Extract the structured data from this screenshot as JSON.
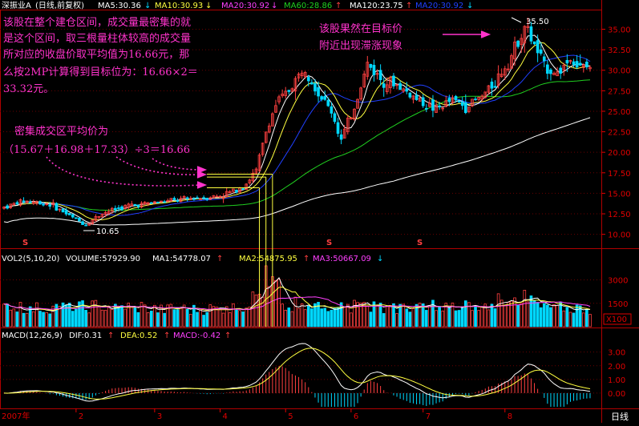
{
  "colors": {
    "background": "#000000",
    "frame": "#b00000",
    "up": "#ff4040",
    "down": "#00d8ff",
    "white": "#ffffff",
    "yellow": "#ffff40",
    "magenta": "#ff40ff",
    "green": "#20d020",
    "blue": "#2040ff",
    "annotation": "#ff33cc",
    "axis_text": "#e00000"
  },
  "header": {
    "stock": "深振业A",
    "period": "(日线,前复权)",
    "ma5": "MA5:30.36",
    "ma10": "MA10:30.93",
    "ma20": "MA20:30.92",
    "ma60": "MA60:28.86",
    "ma120": "MA120:23.75",
    "ma20b": "MA20:30.92",
    "arrow_down": "↓",
    "arrow_up": "↑"
  },
  "annotations": {
    "main_text": [
      "该股在整个建仓区间，成交量最密集的就",
      "是这个区间，取三根量柱体较高的成交量",
      "所对应的收盘价取平均值为16.66元，那",
      "么按2MP计算得到目标位为：16.66×2＝",
      "33.32元。"
    ],
    "right_text": [
      "该股果然在目标价",
      "附近出现滞涨现象"
    ],
    "avg_text": [
      "密集成交区平均价为",
      "（15.67＋16.98＋17.33）÷3＝16.66"
    ],
    "high_label": "35.50",
    "low_label": "10.65",
    "s_marker": "S"
  },
  "volume_header": {
    "title": "VOL2(5,10,20)",
    "volume": "VOLUME:57929.90",
    "ma1": "MA1:54778.07",
    "ma2": "MA2:54875.95",
    "ma3": "MA3:50667.09",
    "unit": "X100"
  },
  "macd_header": {
    "title": "MACD(12,26,9)",
    "dif": "DIF:0.31",
    "dea": "DEA:0.52",
    "macd": "MACD:-0.42"
  },
  "x_axis": {
    "labels": [
      "2007年",
      "2",
      "3",
      "4",
      "5",
      "6",
      "7",
      "8"
    ],
    "period_button": "日线"
  },
  "chart_data": [
    {
      "type": "candlestick",
      "title": "深振业A (日线,前复权)",
      "ylim": [
        8.5,
        37
      ],
      "y_ticks": [
        "35.00",
        "32.50",
        "30.00",
        "27.50",
        "25.00",
        "22.50",
        "20.00",
        "17.50",
        "15.00",
        "12.50",
        "10.00"
      ],
      "series": [
        {
          "name": "MA5",
          "value": 30.36
        },
        {
          "name": "MA10",
          "value": 30.93
        },
        {
          "name": "MA20",
          "value": 30.92
        },
        {
          "name": "MA60",
          "value": 28.86
        },
        {
          "name": "MA120",
          "value": 23.75
        }
      ],
      "key_points": {
        "high": 35.5,
        "low": 10.65,
        "dense_closes": [
          15.67,
          16.98,
          17.33
        ],
        "dense_average": 16.66,
        "target_2mp": 33.32
      },
      "anchors": [
        {
          "t": 0,
          "p": 13.3
        },
        {
          "t": 6,
          "p": 14.1
        },
        {
          "t": 14,
          "p": 13.7
        },
        {
          "t": 22,
          "p": 11.8
        },
        {
          "t": 25,
          "p": 11.2
        },
        {
          "t": 30,
          "p": 12.6
        },
        {
          "t": 38,
          "p": 13.5
        },
        {
          "t": 46,
          "p": 13.9
        },
        {
          "t": 56,
          "p": 14.3
        },
        {
          "t": 66,
          "p": 14.7
        },
        {
          "t": 70,
          "p": 15.3
        },
        {
          "t": 74,
          "p": 16.2
        },
        {
          "t": 77,
          "p": 17.8
        },
        {
          "t": 80,
          "p": 22.5
        },
        {
          "t": 83,
          "p": 25.8
        },
        {
          "t": 87,
          "p": 27.6
        },
        {
          "t": 92,
          "p": 30.5
        },
        {
          "t": 96,
          "p": 27.2
        },
        {
          "t": 100,
          "p": 25.0
        },
        {
          "t": 103,
          "p": 21.5
        },
        {
          "t": 107,
          "p": 25.5
        },
        {
          "t": 111,
          "p": 30.8
        },
        {
          "t": 115,
          "p": 29.0
        },
        {
          "t": 120,
          "p": 28.2
        },
        {
          "t": 126,
          "p": 26.5
        },
        {
          "t": 132,
          "p": 25.2
        },
        {
          "t": 137,
          "p": 26.4
        },
        {
          "t": 141,
          "p": 25.6
        },
        {
          "t": 146,
          "p": 26.8
        },
        {
          "t": 150,
          "p": 28.6
        },
        {
          "t": 155,
          "p": 31.8
        },
        {
          "t": 159,
          "p": 35.5
        },
        {
          "t": 162,
          "p": 33.0
        },
        {
          "t": 165,
          "p": 30.5
        },
        {
          "t": 169,
          "p": 29.6
        },
        {
          "t": 173,
          "p": 31.5
        },
        {
          "t": 176,
          "p": 30.2
        },
        {
          "t": 179,
          "p": 30.4
        }
      ]
    },
    {
      "type": "bar",
      "title": "VOL2(5,10,20)",
      "ylim": [
        0,
        4000
      ],
      "y_ticks": [
        "3000",
        "1500"
      ],
      "series": [
        {
          "name": "VOLUME",
          "value": 57929.9
        },
        {
          "name": "MA1",
          "value": 54778.07
        },
        {
          "name": "MA2",
          "value": 54875.95
        },
        {
          "name": "MA3",
          "value": 50667.09
        }
      ]
    },
    {
      "type": "bar",
      "title": "MACD(12,26,9)",
      "ylim": [
        -1.0,
        3.8
      ],
      "y_ticks": [
        "3.00",
        "2.00",
        "1.00",
        "0.00"
      ],
      "series": [
        {
          "name": "DIF",
          "value": 0.31
        },
        {
          "name": "DEA",
          "value": 0.52
        },
        {
          "name": "MACD",
          "value": -0.42
        }
      ]
    }
  ]
}
